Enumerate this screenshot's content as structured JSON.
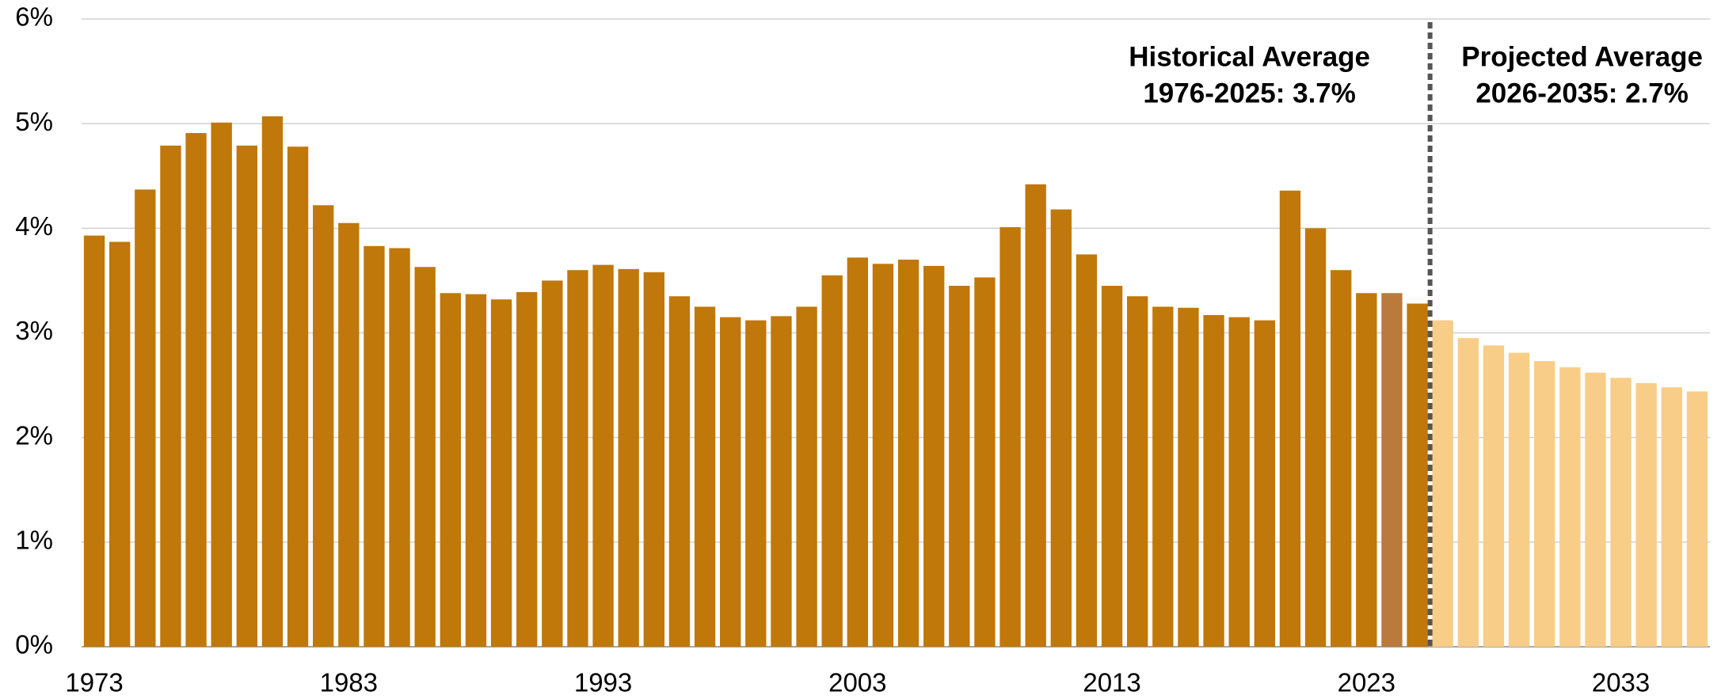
{
  "chart_data": {
    "type": "bar",
    "categories": [
      "1973",
      null,
      null,
      null,
      null,
      null,
      null,
      null,
      null,
      null,
      "1983",
      null,
      null,
      null,
      null,
      null,
      null,
      null,
      null,
      null,
      "1993",
      null,
      null,
      null,
      null,
      null,
      null,
      null,
      null,
      null,
      "2003",
      null,
      null,
      null,
      null,
      null,
      null,
      null,
      null,
      null,
      "2013",
      null,
      null,
      null,
      null,
      null,
      null,
      null,
      null,
      null,
      "2023",
      null,
      null,
      null,
      null,
      null,
      null,
      null,
      null,
      null,
      "2033",
      null,
      null,
      null
    ],
    "values": [
      3.93,
      3.87,
      4.37,
      4.79,
      4.91,
      5.01,
      4.79,
      5.07,
      4.78,
      4.22,
      4.05,
      3.83,
      3.81,
      3.63,
      3.38,
      3.37,
      3.32,
      3.39,
      3.5,
      3.6,
      3.65,
      3.61,
      3.58,
      3.35,
      3.25,
      3.15,
      3.12,
      3.16,
      3.25,
      3.55,
      3.72,
      3.66,
      3.7,
      3.64,
      3.45,
      3.53,
      4.01,
      4.42,
      4.18,
      3.75,
      3.45,
      3.35,
      3.25,
      3.24,
      3.17,
      3.15,
      3.12,
      4.36,
      4.0,
      3.6,
      3.38,
      3.38,
      3.28,
      3.12,
      2.95,
      2.88,
      2.81,
      2.73,
      2.67,
      2.62,
      2.57,
      2.52,
      2.48,
      2.44
    ],
    "colors": [
      "#c0780a",
      "#c0780a",
      "#c0780a",
      "#c0780a",
      "#c0780a",
      "#c0780a",
      "#c0780a",
      "#c0780a",
      "#c0780a",
      "#c0780a",
      "#c0780a",
      "#c0780a",
      "#c0780a",
      "#c0780a",
      "#c0780a",
      "#c0780a",
      "#c0780a",
      "#c0780a",
      "#c0780a",
      "#c0780a",
      "#c0780a",
      "#c0780a",
      "#c0780a",
      "#c0780a",
      "#c0780a",
      "#c0780a",
      "#c0780a",
      "#c0780a",
      "#c0780a",
      "#c0780a",
      "#c0780a",
      "#c0780a",
      "#c0780a",
      "#c0780a",
      "#c0780a",
      "#c0780a",
      "#c0780a",
      "#c0780a",
      "#c0780a",
      "#c0780a",
      "#c0780a",
      "#c0780a",
      "#c0780a",
      "#c0780a",
      "#c0780a",
      "#c0780a",
      "#c0780a",
      "#c0780a",
      "#c0780a",
      "#c0780a",
      "#c0780a",
      "#b97a3b",
      "#c0780a",
      "#f8cd88",
      "#f8cd88",
      "#f8cd88",
      "#f8cd88",
      "#f8cd88",
      "#f8cd88",
      "#f8cd88",
      "#f8cd88",
      "#f8cd88",
      "#f8cd88",
      "#f8cd88"
    ],
    "ylim": [
      0,
      6
    ],
    "yticks": [
      {
        "value": 0,
        "label": "0%"
      },
      {
        "value": 1,
        "label": "1%"
      },
      {
        "value": 2,
        "label": "2%"
      },
      {
        "value": 3,
        "label": "3%"
      },
      {
        "value": 4,
        "label": "4%"
      },
      {
        "value": 5,
        "label": "5%"
      },
      {
        "value": 6,
        "label": "6%"
      }
    ],
    "grid": true,
    "annotations": [
      {
        "lines": [
          "Historical Average",
          "1976-2025: 3.7%"
        ]
      },
      {
        "lines": [
          "Projected Average",
          "2026-2035: 2.7%"
        ]
      }
    ]
  }
}
